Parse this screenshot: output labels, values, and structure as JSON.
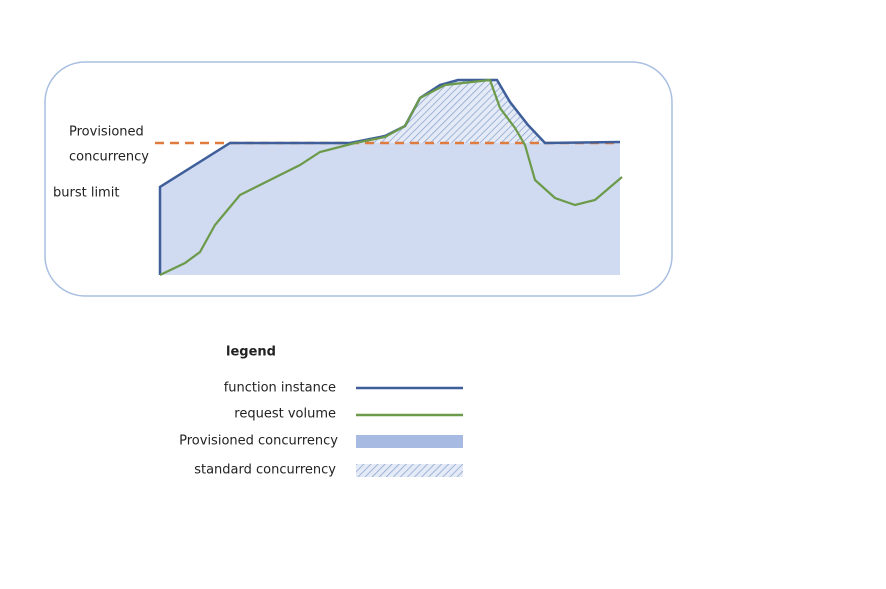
{
  "diagram": {
    "labels": {
      "provisioned": [
        "Provisioned",
        "concurrency"
      ],
      "burst_limit": "burst limit"
    },
    "legend": {
      "title": "legend",
      "items": [
        "function instance",
        "request volume",
        "Provisioned concurrency",
        "standard concurrency"
      ]
    }
  }
}
